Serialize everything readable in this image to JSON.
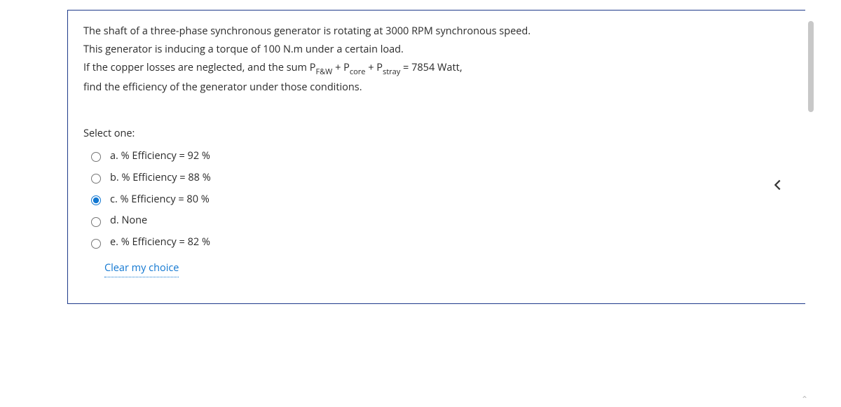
{
  "question": {
    "lines": [
      "The shaft of a three-phase synchronous generator is rotating at 3000 RPM synchronous speed.",
      "This generator is inducing a torque of 100 N.m under a certain load.",
      "If the copper losses are neglected, and the sum P__SUB__F&W__/SUB__ + P__SUB__core__/SUB__ + P__SUB__stray__/SUB__ = 7854 Watt,",
      "find the efficiency of the generator under those conditions."
    ],
    "select_one_label": "Select one:",
    "options": [
      {
        "id": "a",
        "label": "a. % Efficiency = 92 %",
        "checked": false
      },
      {
        "id": "b",
        "label": "b. % Efficiency = 88 %",
        "checked": false
      },
      {
        "id": "c",
        "label": "c. % Efficiency = 80 %",
        "checked": true
      },
      {
        "id": "d",
        "label": "d. None",
        "checked": false
      },
      {
        "id": "e",
        "label": "e. % Efficiency = 82 %",
        "checked": false
      }
    ],
    "clear_choice_label": "Clear my choice"
  },
  "colors": {
    "card_border": "#1e3a8a",
    "text": "#2a2a2a",
    "link": "#1177d1",
    "radio_accent": "#1177d1",
    "scrollbar_thumb": "#c8c8c8",
    "chevron": "#343434"
  },
  "icons": {
    "collapse": "chevron-left"
  }
}
